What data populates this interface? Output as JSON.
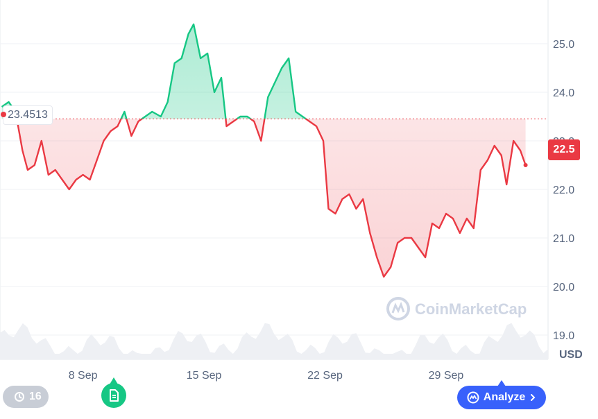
{
  "chart_data": {
    "type": "line",
    "title": "",
    "xlabel": "",
    "ylabel": "",
    "unit_label": "USD",
    "reference_value": 23.4513,
    "reference_label": "23.4513",
    "last_value_label": "22.5",
    "ylim": [
      18.5,
      25.9
    ],
    "y_ticks": [
      19.0,
      20.0,
      21.0,
      22.0,
      23.0,
      24.0,
      25.0
    ],
    "y_tick_labels": [
      "19.0",
      "20.0",
      "21.0",
      "22.0",
      "23.0",
      "24.0",
      "25.0"
    ],
    "x_tick_labels": [
      "8 Sep",
      "15 Sep",
      "22 Sep",
      "29 Sep"
    ],
    "x_tick_days": [
      8,
      15,
      22,
      29
    ],
    "xlim_days": [
      3.2,
      34.9
    ],
    "series": [
      {
        "points": [
          [
            3.3,
            23.7
          ],
          [
            3.7,
            23.8
          ],
          [
            4.1,
            23.6
          ],
          [
            4.5,
            22.8
          ],
          [
            4.8,
            22.4
          ],
          [
            5.2,
            22.5
          ],
          [
            5.6,
            23.0
          ],
          [
            6.0,
            22.3
          ],
          [
            6.4,
            22.4
          ],
          [
            6.8,
            22.2
          ],
          [
            7.2,
            22.0
          ],
          [
            7.6,
            22.2
          ],
          [
            8.0,
            22.3
          ],
          [
            8.4,
            22.2
          ],
          [
            8.8,
            22.6
          ],
          [
            9.2,
            23.0
          ],
          [
            9.6,
            23.2
          ],
          [
            10.0,
            23.3
          ],
          [
            10.4,
            23.6
          ],
          [
            10.8,
            23.1
          ],
          [
            11.2,
            23.4
          ],
          [
            11.6,
            23.5
          ],
          [
            12.0,
            23.6
          ],
          [
            12.5,
            23.5
          ],
          [
            12.9,
            23.8
          ],
          [
            13.3,
            24.6
          ],
          [
            13.7,
            24.7
          ],
          [
            14.1,
            25.2
          ],
          [
            14.4,
            25.4
          ],
          [
            14.8,
            24.7
          ],
          [
            15.2,
            24.8
          ],
          [
            15.6,
            24.0
          ],
          [
            16.0,
            24.3
          ],
          [
            16.3,
            23.3
          ],
          [
            16.7,
            23.4
          ],
          [
            17.1,
            23.5
          ],
          [
            17.5,
            23.5
          ],
          [
            17.9,
            23.4
          ],
          [
            18.3,
            23.0
          ],
          [
            18.7,
            23.9
          ],
          [
            19.1,
            24.2
          ],
          [
            19.5,
            24.5
          ],
          [
            19.9,
            24.7
          ],
          [
            20.3,
            23.6
          ],
          [
            20.7,
            23.5
          ],
          [
            21.1,
            23.4
          ],
          [
            21.5,
            23.3
          ],
          [
            21.9,
            23.0
          ],
          [
            22.2,
            21.6
          ],
          [
            22.6,
            21.5
          ],
          [
            23.0,
            21.8
          ],
          [
            23.4,
            21.9
          ],
          [
            23.8,
            21.6
          ],
          [
            24.2,
            21.8
          ],
          [
            24.6,
            21.1
          ],
          [
            25.0,
            20.6
          ],
          [
            25.4,
            20.2
          ],
          [
            25.8,
            20.4
          ],
          [
            26.2,
            20.9
          ],
          [
            26.6,
            21.0
          ],
          [
            27.0,
            21.0
          ],
          [
            27.4,
            20.8
          ],
          [
            27.8,
            20.6
          ],
          [
            28.2,
            21.3
          ],
          [
            28.6,
            21.2
          ],
          [
            29.0,
            21.5
          ],
          [
            29.4,
            21.4
          ],
          [
            29.8,
            21.1
          ],
          [
            30.2,
            21.4
          ],
          [
            30.6,
            21.2
          ],
          [
            31.0,
            22.4
          ],
          [
            31.4,
            22.6
          ],
          [
            31.8,
            22.9
          ],
          [
            32.2,
            22.7
          ],
          [
            32.5,
            22.1
          ],
          [
            32.9,
            23.0
          ],
          [
            33.3,
            22.8
          ],
          [
            33.6,
            22.5
          ]
        ]
      }
    ],
    "colors": {
      "up": "#16c784",
      "down": "#ea3943",
      "volume": "#eef0f4",
      "grid": "#eff2f5"
    },
    "grid": true,
    "watermark": "CoinMarketCap"
  },
  "history": {
    "count": "16",
    "icon": "history-clock-icon"
  },
  "news": {
    "icon": "document-icon"
  },
  "analyze": {
    "label": "Analyze",
    "icon": "analyze-logo-icon"
  }
}
